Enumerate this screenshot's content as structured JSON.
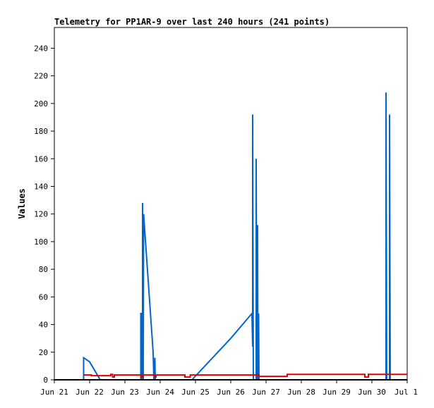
{
  "chart_data": {
    "type": "line",
    "title": "Telemetry for PP1AR-9 over last 240 hours (241 points)",
    "xlabel": "",
    "ylabel": "Values",
    "xlim": [
      0,
      10
    ],
    "ylim": [
      0,
      255
    ],
    "x_tick_labels": [
      "Jun 21",
      "Jun 22",
      "Jun 23",
      "Jun 24",
      "Jun 25",
      "Jun 26",
      "Jun 27",
      "Jun 28",
      "Jun 29",
      "Jun 30",
      "Jul 1"
    ],
    "y_ticks": [
      0,
      20,
      40,
      60,
      80,
      100,
      120,
      140,
      160,
      180,
      200,
      220,
      240
    ],
    "grid": false,
    "legend": "none",
    "series": [
      {
        "color": "#0066cc",
        "points": [
          [
            0.83,
            0
          ],
          [
            0.83,
            16
          ],
          [
            1.0,
            13
          ],
          [
            1.3,
            0
          ],
          [
            2.45,
            0
          ],
          [
            2.45,
            48
          ],
          [
            2.47,
            48
          ],
          [
            2.47,
            0
          ],
          [
            2.5,
            0
          ],
          [
            2.5,
            128
          ],
          [
            2.52,
            0
          ],
          [
            2.53,
            120
          ],
          [
            2.8,
            20
          ],
          [
            2.82,
            0
          ],
          [
            2.85,
            16
          ],
          [
            2.86,
            0
          ],
          [
            3.9,
            0
          ],
          [
            5.0,
            30
          ],
          [
            5.6,
            48
          ],
          [
            5.62,
            24
          ],
          [
            5.62,
            192
          ],
          [
            5.64,
            0
          ],
          [
            5.72,
            0
          ],
          [
            5.72,
            160
          ],
          [
            5.74,
            0
          ],
          [
            5.76,
            112
          ],
          [
            5.77,
            0
          ],
          [
            5.79,
            48
          ],
          [
            5.8,
            0
          ],
          [
            9.4,
            0
          ],
          [
            9.4,
            208
          ],
          [
            9.42,
            0
          ],
          [
            9.5,
            0
          ],
          [
            9.5,
            192
          ],
          [
            9.52,
            0
          ]
        ]
      },
      {
        "color": "#dd0000",
        "points": [
          [
            0.83,
            3.5
          ],
          [
            1.05,
            3.5
          ],
          [
            1.05,
            3.0
          ],
          [
            1.6,
            3.0
          ],
          [
            1.6,
            4.0
          ],
          [
            1.65,
            4.0
          ],
          [
            1.65,
            2.0
          ],
          [
            1.7,
            2.0
          ],
          [
            1.7,
            3.5
          ],
          [
            2.45,
            3.5
          ],
          [
            2.45,
            2.0
          ],
          [
            2.5,
            2.0
          ],
          [
            2.5,
            3.5
          ],
          [
            2.85,
            3.5
          ],
          [
            2.85,
            2.0
          ],
          [
            2.88,
            2.0
          ],
          [
            2.88,
            3.5
          ],
          [
            3.7,
            3.5
          ],
          [
            3.7,
            2.0
          ],
          [
            3.85,
            2.0
          ],
          [
            3.85,
            3.5
          ],
          [
            5.8,
            3.5
          ],
          [
            5.8,
            2.5
          ],
          [
            6.6,
            2.5
          ],
          [
            6.6,
            4.0
          ],
          [
            8.8,
            4.0
          ],
          [
            8.8,
            2.0
          ],
          [
            8.9,
            2.0
          ],
          [
            8.9,
            4.0
          ],
          [
            10.0,
            4.0
          ]
        ]
      },
      {
        "color": "#000000",
        "points": [
          [
            0,
            0
          ],
          [
            10,
            0
          ]
        ]
      }
    ]
  }
}
